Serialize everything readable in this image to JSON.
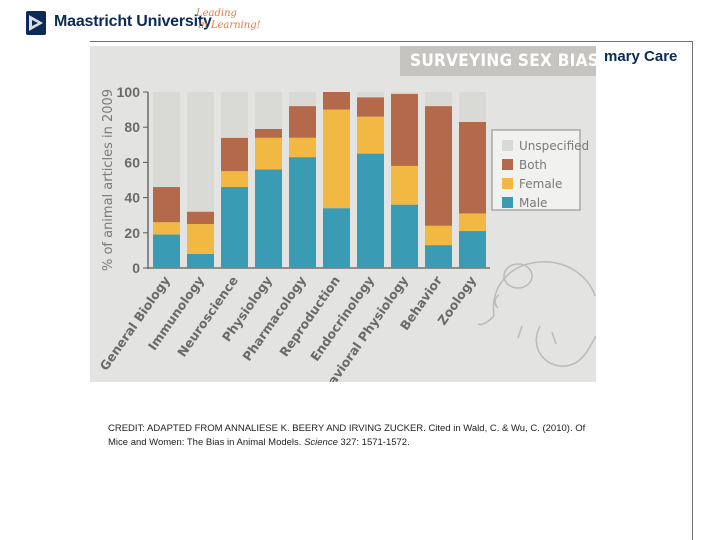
{
  "header": {
    "university": "Maastricht University",
    "tagline_line1": "Leading",
    "tagline_line2": "in Learning!",
    "section_title": "mary Care"
  },
  "figure": {
    "banner": "SURVEYING SEX BIAS"
  },
  "chart_data": {
    "type": "bar",
    "stacked": true,
    "title": "SURVEYING SEX BIAS",
    "ylabel": "% of animal articles in 2009",
    "xlabel": "",
    "ylim": [
      0,
      100
    ],
    "yticks": [
      0,
      20,
      40,
      60,
      80,
      100
    ],
    "categories": [
      "General Biology",
      "Immunology",
      "Neuroscience",
      "Physiology",
      "Pharmacology",
      "Reproduction",
      "Endocrinology",
      "Behavioral Physiology",
      "Behavior",
      "Zoology"
    ],
    "series": [
      {
        "name": "Male",
        "color": "#3a9bb4",
        "values": [
          19,
          8,
          46,
          56,
          63,
          34,
          65,
          36,
          13,
          21
        ]
      },
      {
        "name": "Female",
        "color": "#f2b844",
        "values": [
          7,
          17,
          9,
          18,
          11,
          56,
          21,
          22,
          11,
          10
        ]
      },
      {
        "name": "Both",
        "color": "#b4694a",
        "values": [
          20,
          7,
          19,
          5,
          18,
          10,
          11,
          41,
          68,
          52
        ]
      },
      {
        "name": "Unspecified",
        "color": "#d9d9d6",
        "values": [
          54,
          68,
          26,
          21,
          8,
          0,
          3,
          1,
          8,
          17
        ]
      }
    ],
    "legend_order": [
      "Unspecified",
      "Both",
      "Female",
      "Male"
    ],
    "legend_position": "right"
  },
  "credit": {
    "line1": "CREDIT: ADAPTED FROM ANNALIESE K. BEERY AND IRVING ZUCKER. Cited in Wald, C.",
    "line2_prefix": "& Wu, C. (2010). Of Mice and Women: The Bias in Animal Models. ",
    "journal": "Science",
    "line2_suffix": " 327: 1571-1572."
  }
}
